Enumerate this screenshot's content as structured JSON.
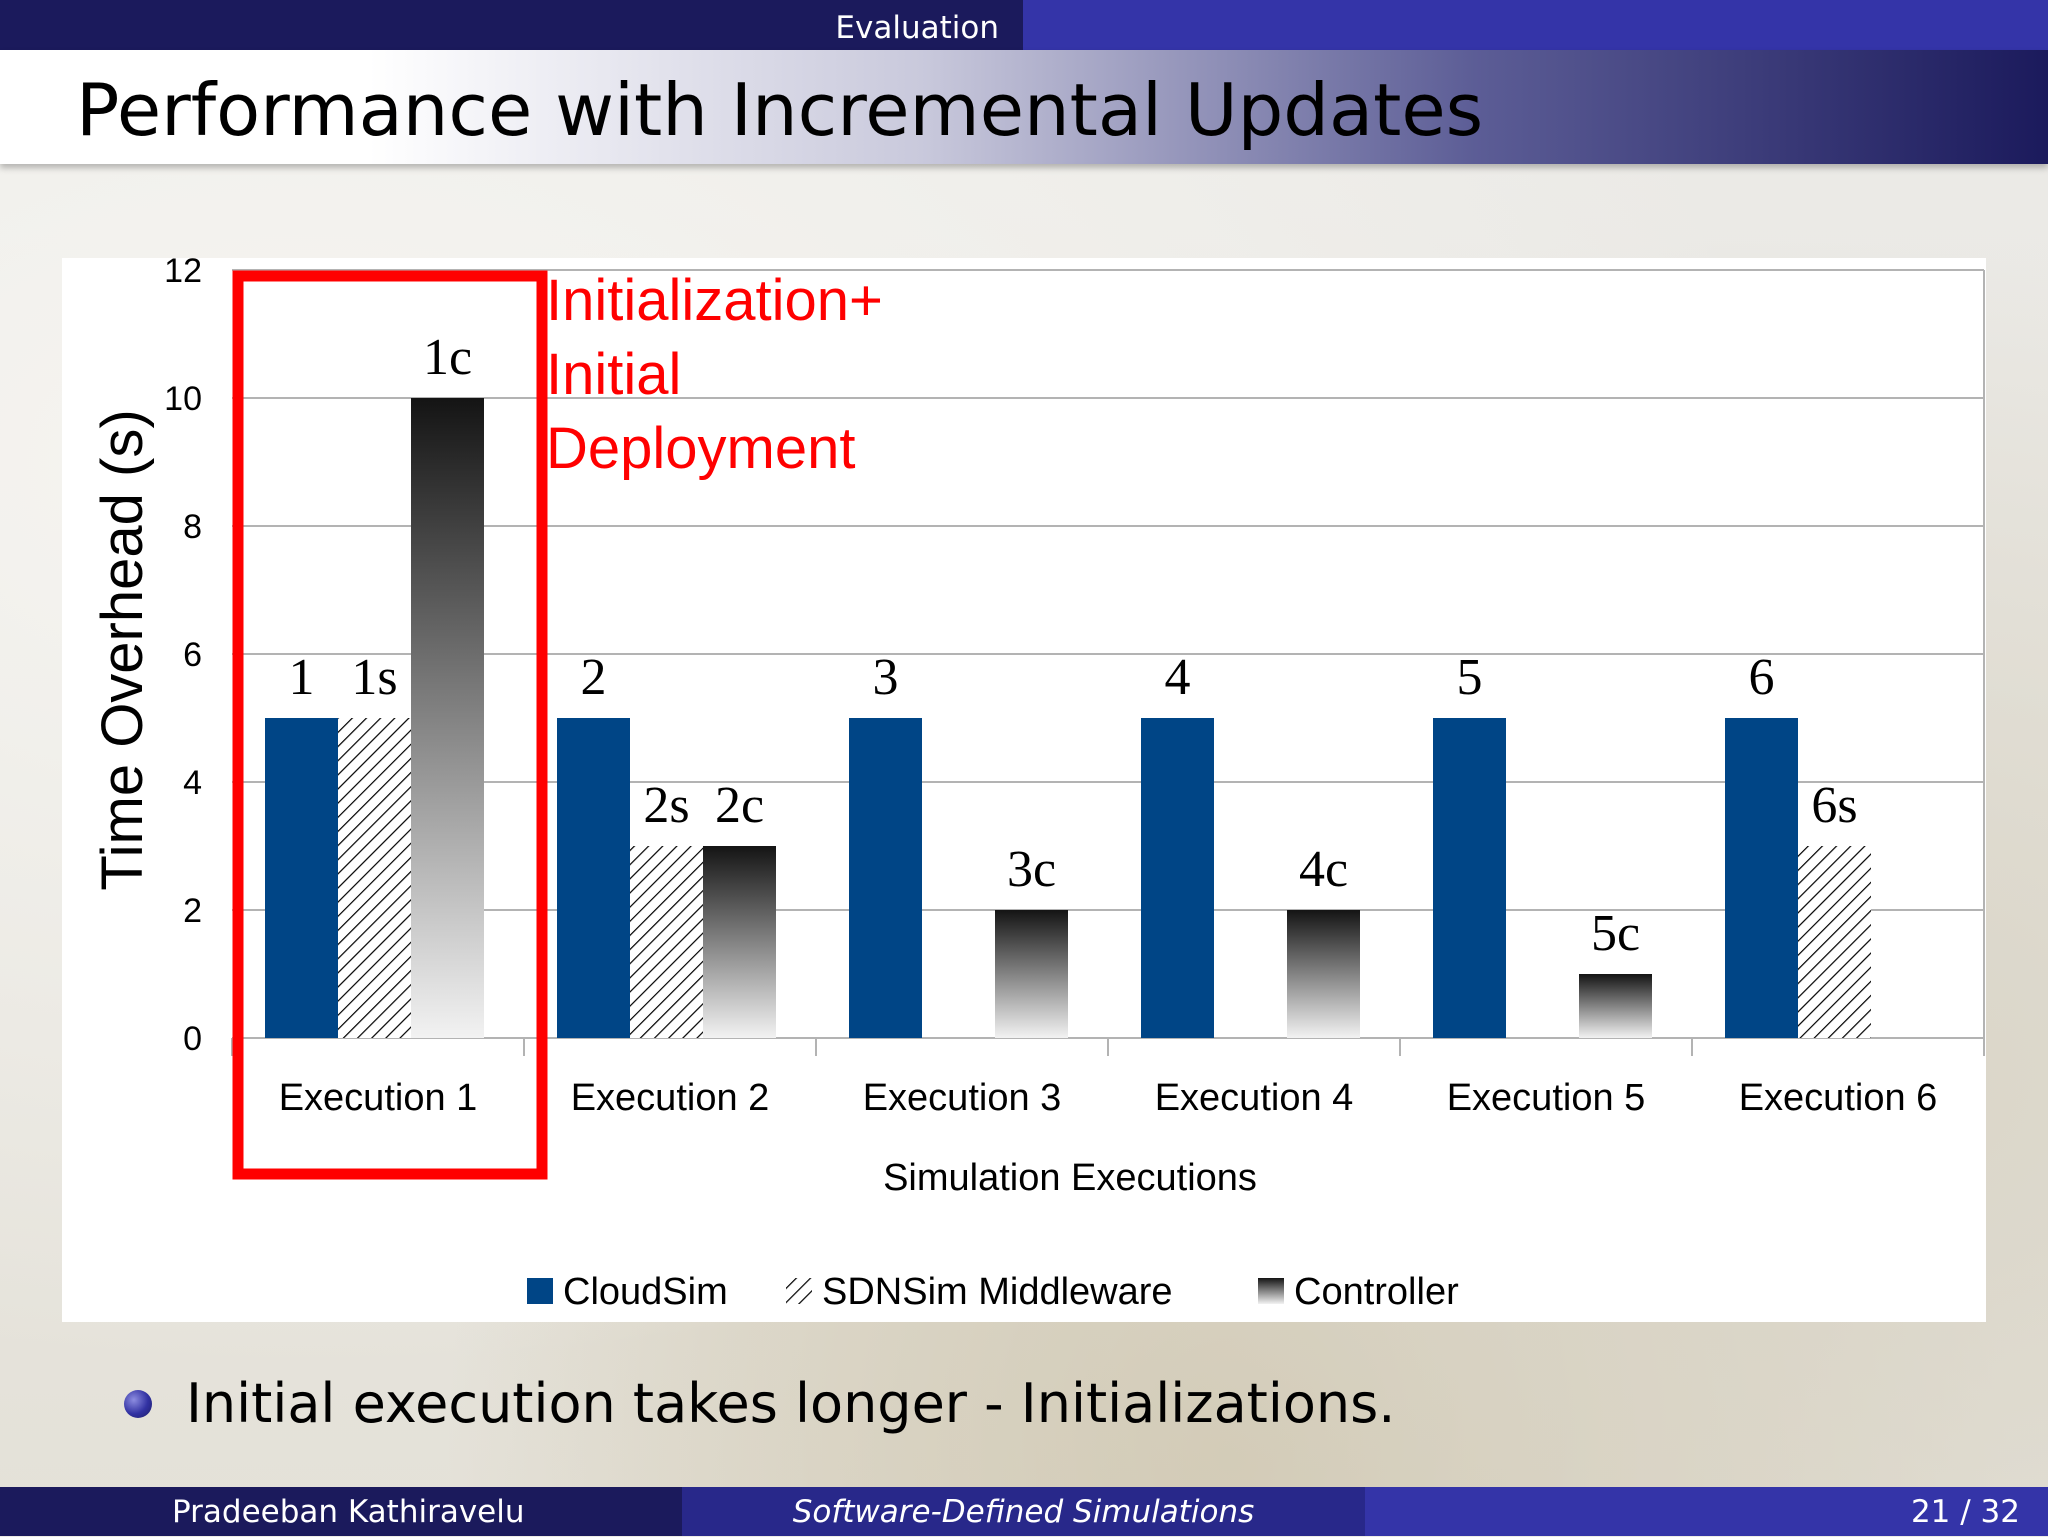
{
  "header": {
    "section": "Evaluation",
    "title": "Performance with Incremental Updates"
  },
  "chart_data": {
    "type": "bar",
    "ylabel": "Time Overhead (s)",
    "xlabel": "Simulation Executions",
    "ylim": [
      0,
      12
    ],
    "yticks": [
      "0",
      "2",
      "4",
      "6",
      "8",
      "10",
      "12"
    ],
    "grid": true,
    "legend_position": "bottom",
    "categories": [
      "Execution 1",
      "Execution 2",
      "Execution 3",
      "Execution 4",
      "Execution 5",
      "Execution 6"
    ],
    "series": [
      {
        "name": "CloudSim",
        "color": "#004586",
        "values": [
          5,
          5,
          5,
          5,
          5,
          5
        ],
        "labels": [
          "1",
          "2",
          "3",
          "4",
          "5",
          "6"
        ]
      },
      {
        "name": "SDNSim Middleware",
        "pattern": "diagonal-hatch",
        "values": [
          5,
          3,
          null,
          null,
          null,
          3
        ],
        "labels": [
          "1s",
          "2s",
          "",
          "",
          "",
          "6s"
        ]
      },
      {
        "name": "Controller",
        "pattern": "dark-to-light-gradient",
        "values": [
          10,
          3,
          2,
          2,
          1,
          null
        ],
        "labels": [
          "1c",
          "2c",
          "3c",
          "4c",
          "5c",
          ""
        ]
      }
    ],
    "annotation": {
      "lines": [
        "Initialization+",
        "Initial",
        "Deployment"
      ],
      "color": "#ff0000",
      "highlights": "Execution 1"
    }
  },
  "bullet": {
    "text": "Initial execution takes longer - Initializations."
  },
  "footer": {
    "author": "Pradeeban Kathiravelu",
    "talk_title": "Software-Defined Simulations",
    "page": "21 / 32"
  }
}
